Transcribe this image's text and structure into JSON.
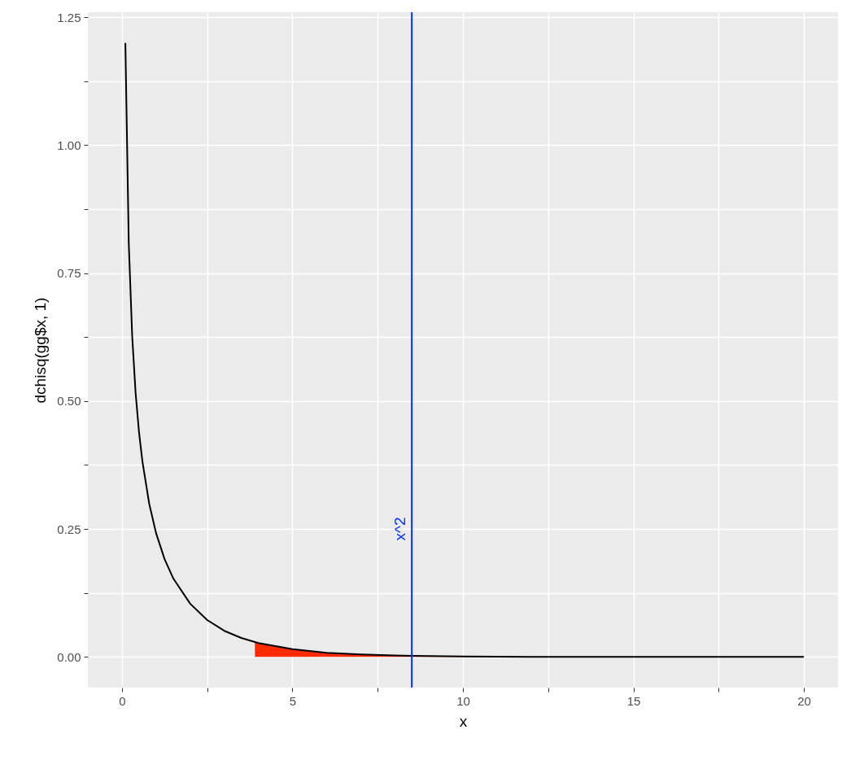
{
  "chart_data": {
    "type": "line",
    "xlabel": "x",
    "ylabel": "dchisq(gg$x, 1)",
    "xlim": [
      -1,
      21
    ],
    "ylim": [
      -0.06,
      1.26
    ],
    "xticks": [
      0,
      {
        "value": 2.5,
        "label": null
      },
      5,
      {
        "value": 7.5,
        "label": null
      },
      10,
      {
        "value": 12.5,
        "label": null
      },
      15,
      {
        "value": 17.5,
        "label": null
      },
      20
    ],
    "yticks": [
      {
        "value": 0,
        "label": "0.00"
      },
      {
        "value": 0.125,
        "label": null
      },
      {
        "value": 0.25,
        "label": "0.25"
      },
      {
        "value": 0.375,
        "label": null
      },
      {
        "value": 0.5,
        "label": "0.50"
      },
      {
        "value": 0.625,
        "label": null
      },
      {
        "value": 0.75,
        "label": "0.75"
      },
      {
        "value": 0.875,
        "label": null
      },
      {
        "value": 1,
        "label": "1.00"
      },
      {
        "value": 1.125,
        "label": null
      },
      {
        "value": 1.25,
        "label": "1.25"
      }
    ],
    "grid": true,
    "marker": "none",
    "line_style": "solid",
    "series": [
      {
        "type": "area",
        "color": "#ff2a00",
        "x": [
          3.9,
          4,
          4.5,
          5,
          6,
          7,
          8,
          8.5,
          10,
          12,
          15,
          20
        ],
        "values": [
          0.029,
          0.027,
          0.02,
          0.015,
          0.008,
          0.005,
          0.003,
          0.002,
          0.001,
          0,
          0,
          0
        ]
      },
      {
        "color": "#000000",
        "x": [
          0.1,
          0.2,
          0.3,
          0.4,
          0.5,
          0.6,
          0.8,
          1,
          1.25,
          1.5,
          2,
          2.5,
          3,
          3.5,
          4,
          5,
          6,
          7,
          8,
          8.5,
          10,
          12,
          15,
          20
        ],
        "values": [
          1.2,
          0.807,
          0.627,
          0.516,
          0.439,
          0.382,
          0.299,
          0.242,
          0.191,
          0.154,
          0.104,
          0.072,
          0.051,
          0.037,
          0.027,
          0.015,
          0.008,
          0.005,
          0.003,
          0.002,
          0.001,
          0,
          0,
          0
        ]
      }
    ],
    "ref_lines": [
      {
        "axis": "x",
        "value": 8.5,
        "color": "#0033ff",
        "label": "x^2"
      }
    ]
  }
}
